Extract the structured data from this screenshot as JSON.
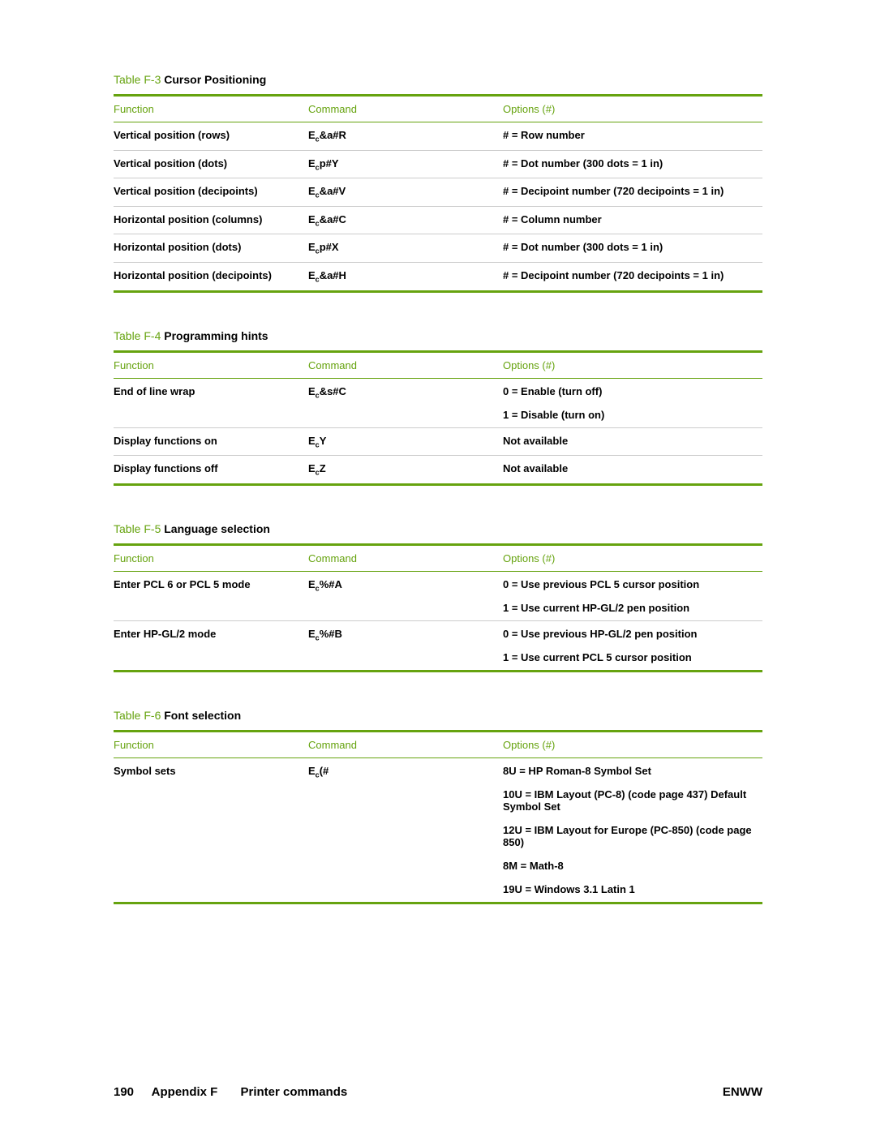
{
  "colors": {
    "accent": "#66a30f",
    "row_divider": "#cccccc",
    "text": "#000000",
    "background": "#ffffff"
  },
  "columns": {
    "function": "Function",
    "command": "Command",
    "options": "Options (#)"
  },
  "tables": [
    {
      "prefix": "Table F-3",
      "title": "Cursor Positioning",
      "rows": [
        {
          "function": "Vertical position (rows)",
          "cmd_prefix": "E",
          "cmd_sub": "c",
          "cmd_suffix": "&a#R",
          "options": [
            "# = Row number"
          ]
        },
        {
          "function": "Vertical position (dots)",
          "cmd_prefix": "E",
          "cmd_sub": "c",
          "cmd_suffix": "p#Y",
          "options": [
            "# = Dot number (300 dots = 1 in)"
          ]
        },
        {
          "function": "Vertical position (decipoints)",
          "cmd_prefix": "E",
          "cmd_sub": "c",
          "cmd_suffix": "&a#V",
          "options": [
            "# = Decipoint number (720 decipoints = 1 in)"
          ]
        },
        {
          "function": "Horizontal position (columns)",
          "cmd_prefix": "E",
          "cmd_sub": "c",
          "cmd_suffix": "&a#C",
          "options": [
            "# = Column number"
          ]
        },
        {
          "function": "Horizontal position (dots)",
          "cmd_prefix": "E",
          "cmd_sub": "c",
          "cmd_suffix": "p#X",
          "options": [
            "# = Dot number (300 dots = 1 in)"
          ]
        },
        {
          "function": "Horizontal position (decipoints)",
          "cmd_prefix": "E",
          "cmd_sub": "c",
          "cmd_suffix": "&a#H",
          "options": [
            "# = Decipoint number (720 decipoints = 1 in)"
          ]
        }
      ]
    },
    {
      "prefix": "Table F-4",
      "title": "Programming hints",
      "rows": [
        {
          "function": "End of line wrap",
          "cmd_prefix": "E",
          "cmd_sub": "c",
          "cmd_suffix": "&s#C",
          "options": [
            "0 = Enable (turn off)",
            "1 = Disable (turn on)"
          ]
        },
        {
          "function": "Display functions on",
          "cmd_prefix": "E",
          "cmd_sub": "c",
          "cmd_suffix": "Y",
          "options": [
            "Not available"
          ]
        },
        {
          "function": "Display functions off",
          "cmd_prefix": "E",
          "cmd_sub": "c",
          "cmd_suffix": "Z",
          "options": [
            "Not available"
          ]
        }
      ]
    },
    {
      "prefix": "Table F-5",
      "title": "Language selection",
      "rows": [
        {
          "function": "Enter PCL 6 or PCL 5 mode",
          "cmd_prefix": "E",
          "cmd_sub": "c",
          "cmd_suffix": "%#A",
          "options": [
            "0 = Use previous PCL 5 cursor position",
            "1 = Use current HP-GL/2 pen position"
          ]
        },
        {
          "function": "Enter HP-GL/2 mode",
          "cmd_prefix": "E",
          "cmd_sub": "c",
          "cmd_suffix": "%#B",
          "options": [
            "0 = Use previous HP-GL/2 pen position",
            "1 = Use current PCL 5 cursor position"
          ]
        }
      ]
    },
    {
      "prefix": "Table F-6",
      "title": "Font selection",
      "rows": [
        {
          "function": "Symbol sets",
          "cmd_prefix": "E",
          "cmd_sub": "c",
          "cmd_suffix": "(#",
          "options": [
            "8U = HP Roman-8 Symbol Set",
            "10U = IBM Layout (PC-8) (code page 437) Default Symbol Set",
            "12U = IBM Layout for Europe (PC-850) (code page 850)",
            "8M = Math-8",
            "19U = Windows 3.1 Latin 1"
          ]
        }
      ]
    }
  ],
  "footer": {
    "page": "190",
    "appendix": "Appendix F",
    "section": "Printer commands",
    "right": "ENWW"
  }
}
